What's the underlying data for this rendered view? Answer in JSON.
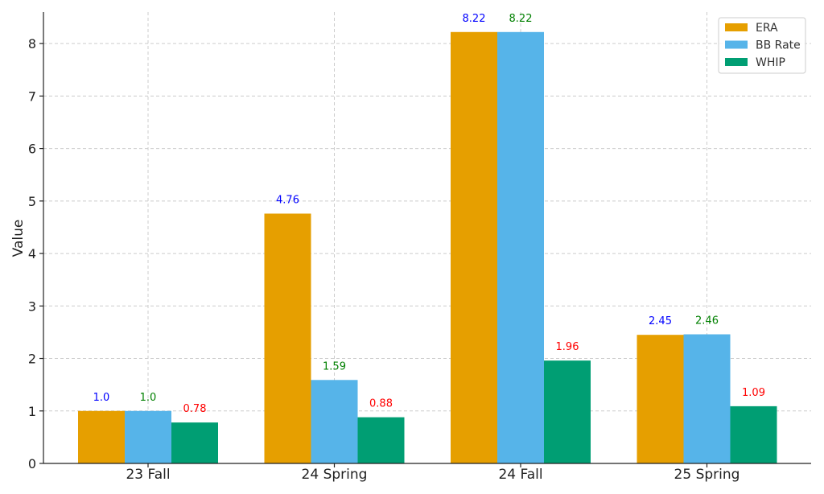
{
  "chart_data": {
    "type": "bar",
    "title": "",
    "xlabel": "",
    "ylabel": "Value",
    "categories": [
      "23 Fall",
      "24 Spring",
      "24 Fall",
      "25 Spring"
    ],
    "ylim": [
      0,
      8.6
    ],
    "yticks": [
      0,
      1,
      2,
      3,
      4,
      5,
      6,
      7,
      8
    ],
    "grid": true,
    "legend_position": "top-right",
    "series": [
      {
        "name": "ERA",
        "color": "#E69F00",
        "values": [
          1.0,
          4.76,
          8.22,
          2.45
        ],
        "labels": [
          "1.0",
          "4.76",
          "8.22",
          "2.45"
        ],
        "label_color": "#0000FF"
      },
      {
        "name": "BB Rate",
        "color": "#56B4E9",
        "values": [
          1.0,
          1.59,
          8.22,
          2.46
        ],
        "labels": [
          "1.0",
          "1.59",
          "8.22",
          "2.46"
        ],
        "label_color": "#008000"
      },
      {
        "name": "WHIP",
        "color": "#009E73",
        "values": [
          0.78,
          0.88,
          1.96,
          1.09
        ],
        "labels": [
          "0.78",
          "0.88",
          "1.96",
          "1.09"
        ],
        "label_color": "#FF0000"
      }
    ]
  }
}
